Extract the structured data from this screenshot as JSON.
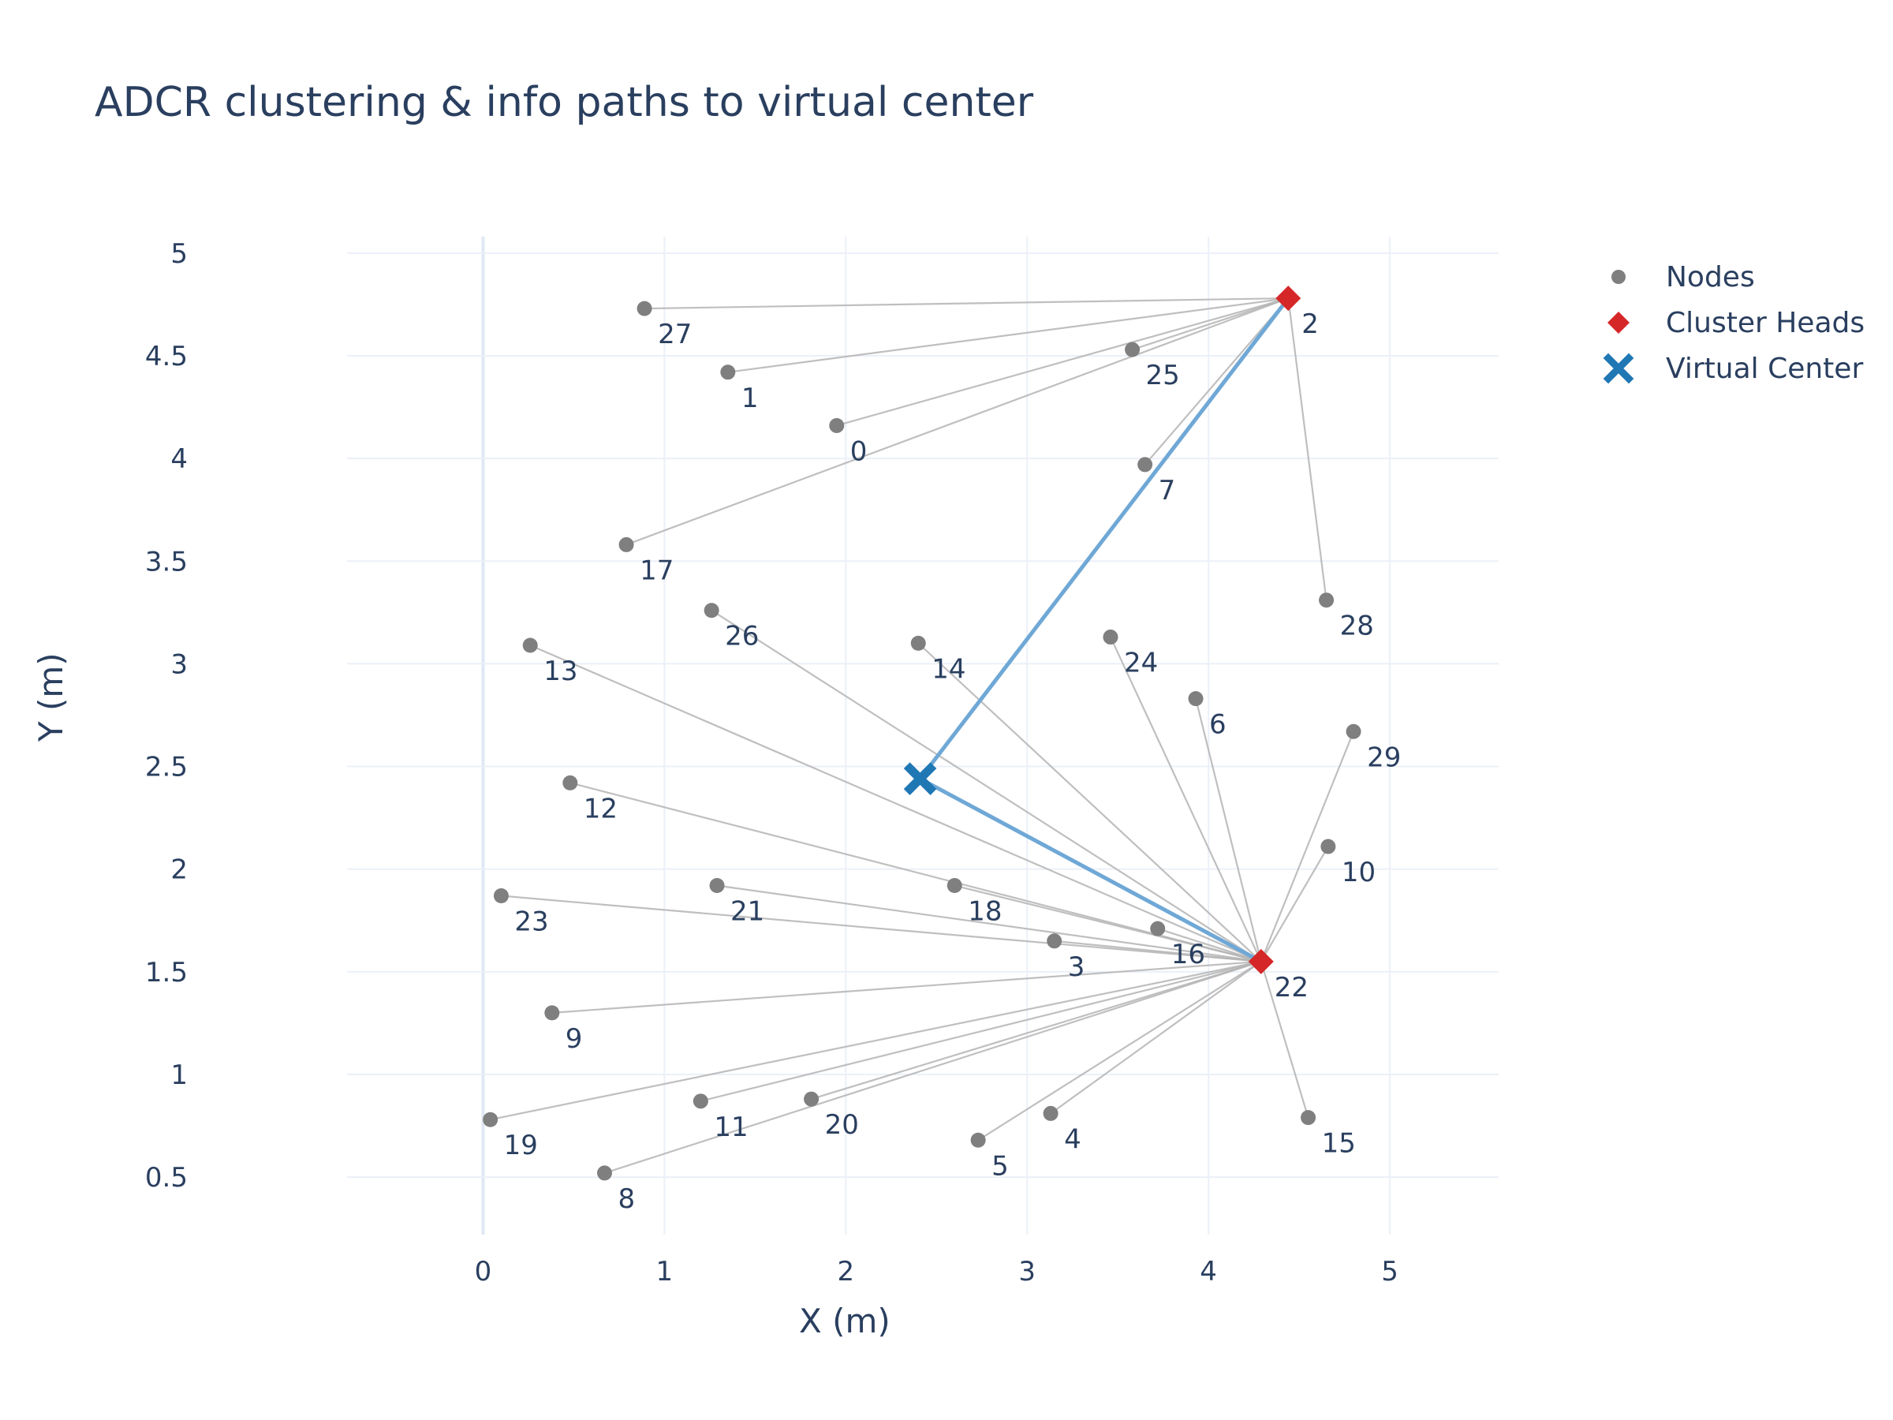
{
  "chart_data": {
    "type": "scatter",
    "title": "ADCR clustering & info paths to virtual center",
    "xlabel": "X (m)",
    "ylabel": "Y (m)",
    "xlim": [
      -0.75,
      5.6
    ],
    "ylim": [
      0.22,
      5.08
    ],
    "xticks": [
      0,
      1,
      2,
      3,
      4,
      5
    ],
    "yticks": [
      0.5,
      1,
      1.5,
      2,
      2.5,
      3,
      3.5,
      4,
      4.5,
      5
    ],
    "grid": true,
    "legend_position": "top-right",
    "colors": {
      "nodes": "#7f7f7f",
      "cluster_heads": "#d62728",
      "virtual_center": "#1f77b4",
      "member_link": "#b4b4b4",
      "ch_path": "#6fa8d6",
      "grid": "#ebf0f8"
    },
    "series": [
      {
        "name": "Nodes",
        "points": [
          {
            "id": "0",
            "x": 1.95,
            "y": 4.16
          },
          {
            "id": "1",
            "x": 1.35,
            "y": 4.42
          },
          {
            "id": "3",
            "x": 3.15,
            "y": 1.65
          },
          {
            "id": "4",
            "x": 3.13,
            "y": 0.81
          },
          {
            "id": "5",
            "x": 2.73,
            "y": 0.68
          },
          {
            "id": "6",
            "x": 3.93,
            "y": 2.83
          },
          {
            "id": "7",
            "x": 3.65,
            "y": 3.97
          },
          {
            "id": "8",
            "x": 0.67,
            "y": 0.52
          },
          {
            "id": "9",
            "x": 0.38,
            "y": 1.3
          },
          {
            "id": "10",
            "x": 4.66,
            "y": 2.11
          },
          {
            "id": "11",
            "x": 1.2,
            "y": 0.87
          },
          {
            "id": "12",
            "x": 0.48,
            "y": 2.42
          },
          {
            "id": "13",
            "x": 0.26,
            "y": 3.09
          },
          {
            "id": "14",
            "x": 2.4,
            "y": 3.1
          },
          {
            "id": "15",
            "x": 4.55,
            "y": 0.79
          },
          {
            "id": "16",
            "x": 3.72,
            "y": 1.71
          },
          {
            "id": "17",
            "x": 0.79,
            "y": 3.58
          },
          {
            "id": "18",
            "x": 2.6,
            "y": 1.92
          },
          {
            "id": "19",
            "x": 0.04,
            "y": 0.78
          },
          {
            "id": "20",
            "x": 1.81,
            "y": 0.88
          },
          {
            "id": "21",
            "x": 1.29,
            "y": 1.92
          },
          {
            "id": "23",
            "x": 0.1,
            "y": 1.87
          },
          {
            "id": "24",
            "x": 3.46,
            "y": 3.13
          },
          {
            "id": "25",
            "x": 3.58,
            "y": 4.53
          },
          {
            "id": "26",
            "x": 1.26,
            "y": 3.26
          },
          {
            "id": "27",
            "x": 0.89,
            "y": 4.73
          },
          {
            "id": "28",
            "x": 4.65,
            "y": 3.31
          },
          {
            "id": "29",
            "x": 4.8,
            "y": 2.67
          }
        ]
      },
      {
        "name": "Cluster Heads",
        "points": [
          {
            "id": "2",
            "x": 4.44,
            "y": 4.78
          },
          {
            "id": "22",
            "x": 4.29,
            "y": 1.55
          }
        ]
      },
      {
        "name": "Virtual Center",
        "points": [
          {
            "x": 2.41,
            "y": 2.44
          }
        ]
      }
    ],
    "clusters": [
      {
        "head": "2",
        "members": [
          "27",
          "1",
          "0",
          "25",
          "17",
          "7",
          "28"
        ]
      },
      {
        "head": "22",
        "members": [
          "26",
          "14",
          "13",
          "24",
          "6",
          "12",
          "29",
          "10",
          "18",
          "21",
          "16",
          "23",
          "3",
          "9",
          "19",
          "11",
          "20",
          "8",
          "5",
          "4",
          "15"
        ]
      }
    ]
  }
}
